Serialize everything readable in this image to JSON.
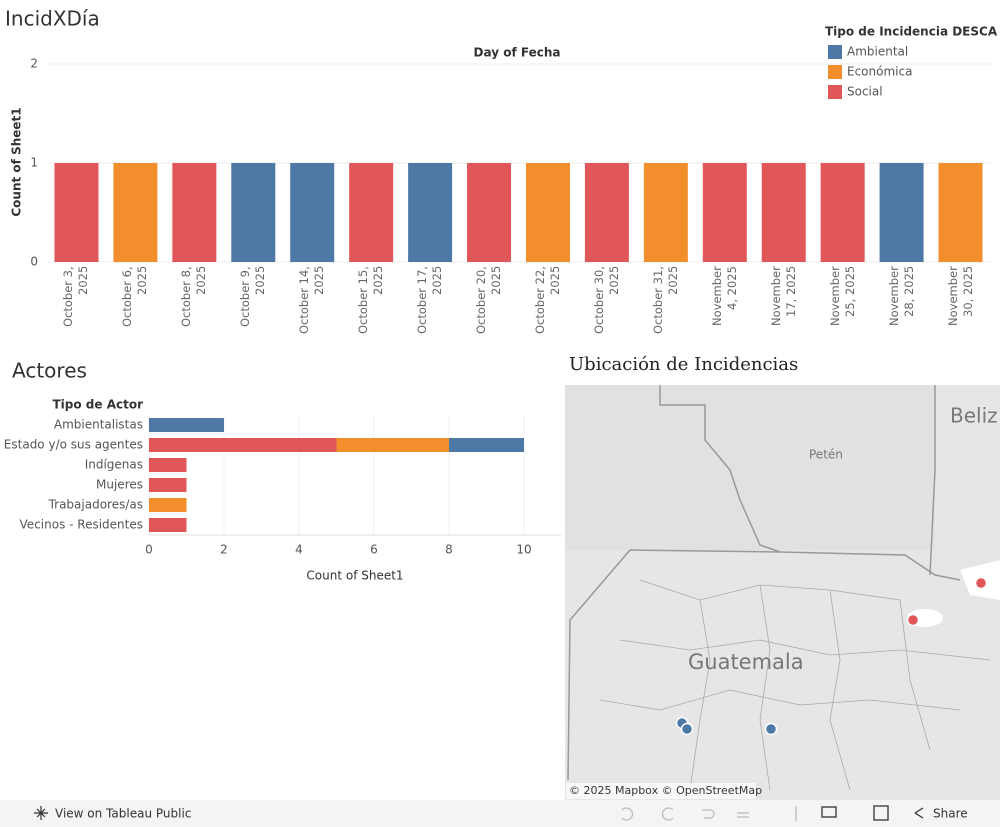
{
  "chart_data": [
    {
      "type": "bar",
      "title": "IncidXDía",
      "xlabel": "Day of Fecha",
      "ylabel": "Count of Sheet1",
      "legend_title": "Tipo de Incidencia DESCA",
      "legend": "top-right",
      "grid": true,
      "categories": [
        "October 3, 2025",
        "October 6, 2025",
        "October 8, 2025",
        "October 9, 2025",
        "October 14, 2025",
        "October 15, 2025",
        "October 17, 2025",
        "October 20, 2025",
        "October 22, 2025",
        "October 30, 2025",
        "October 31, 2025",
        "November 4, 2025",
        "November 17, 2025",
        "November 25, 2025",
        "November 28, 2025",
        "November 30, 2025"
      ],
      "series": [
        {
          "name": "Ambiental",
          "color": "#4e79a7",
          "values": [
            null,
            null,
            null,
            1,
            1,
            null,
            1,
            null,
            null,
            null,
            null,
            null,
            null,
            null,
            1,
            null
          ]
        },
        {
          "name": "Económica",
          "color": "#f28e2b",
          "values": [
            null,
            1,
            null,
            null,
            null,
            null,
            null,
            null,
            1,
            null,
            1,
            null,
            null,
            null,
            null,
            1
          ]
        },
        {
          "name": "Social",
          "color": "#e15759",
          "values": [
            1,
            null,
            1,
            null,
            null,
            1,
            null,
            1,
            null,
            1,
            null,
            1,
            1,
            1,
            null,
            null
          ]
        }
      ],
      "ylim": [
        0,
        2
      ],
      "yticks": [
        0,
        1,
        2
      ]
    },
    {
      "type": "stacked-hbar",
      "title": "Actores",
      "category_header": "Tipo de Actor",
      "xlabel": "Count of Sheet1",
      "grid": true,
      "categories": [
        "Ambientalistas",
        "Estado y/o sus agentes",
        "Indígenas",
        "Mujeres",
        "Trabajadores/as",
        "Vecinos - Residentes"
      ],
      "series": [
        {
          "color": "#e15759",
          "values": [
            null,
            5,
            1,
            1,
            null,
            1
          ]
        },
        {
          "color": "#f28e2b",
          "values": [
            null,
            3,
            null,
            null,
            1,
            null
          ]
        },
        {
          "color": "#4e79a7",
          "values": [
            2,
            2,
            null,
            null,
            null,
            null
          ]
        }
      ],
      "xlim": [
        0,
        11
      ],
      "xticks": [
        0,
        2,
        4,
        6,
        8,
        10
      ]
    }
  ],
  "map": {
    "title": "Ubicación de Incidencias",
    "labels": [
      "Beliz",
      "Petén",
      "Guatemala"
    ],
    "attribution": "© 2025 Mapbox  © OpenStreetMap"
  },
  "toolbar": {
    "view_link": "View on Tableau Public",
    "share": "Share"
  }
}
